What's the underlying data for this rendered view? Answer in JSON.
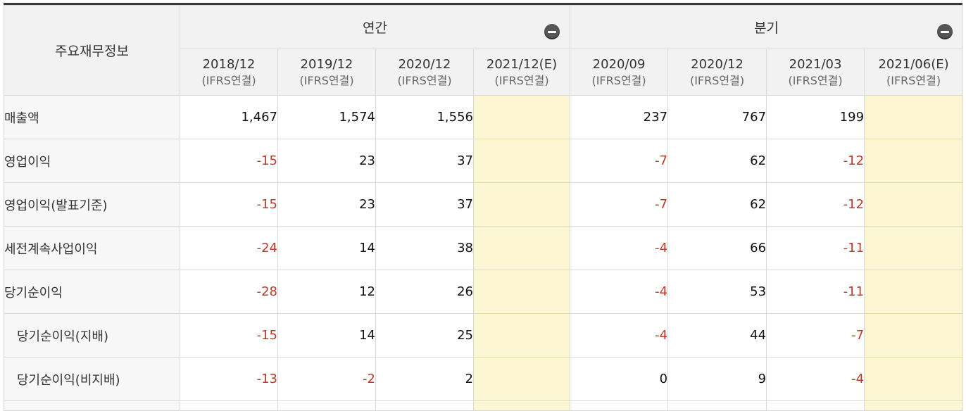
{
  "table": {
    "corner_label": "주요재무정보",
    "groups": {
      "annual": "연간",
      "quarterly": "분기"
    },
    "sub_label": "(IFRS연결)",
    "periods": [
      "2018/12",
      "2019/12",
      "2020/12",
      "2021/12(E)",
      "2020/09",
      "2020/12",
      "2021/03",
      "2021/06(E)"
    ],
    "rows": [
      {
        "label": "매출액",
        "values": [
          "1,467",
          "1,574",
          "1,556",
          "",
          "237",
          "767",
          "199",
          ""
        ]
      },
      {
        "label": "영업이익",
        "values": [
          "-15",
          "23",
          "37",
          "",
          "-7",
          "62",
          "-12",
          ""
        ]
      },
      {
        "label": "영업이익(발표기준)",
        "values": [
          "-15",
          "23",
          "37",
          "",
          "-7",
          "62",
          "-12",
          ""
        ]
      },
      {
        "label": "세전계속사업이익",
        "values": [
          "-24",
          "14",
          "38",
          "",
          "-4",
          "66",
          "-11",
          ""
        ]
      },
      {
        "label": "당기순이익",
        "values": [
          "-28",
          "12",
          "26",
          "",
          "-4",
          "53",
          "-11",
          ""
        ]
      },
      {
        "label": "당기순이익(지배)",
        "values": [
          "-15",
          "14",
          "25",
          "",
          "-4",
          "44",
          "-7",
          ""
        ]
      },
      {
        "label": "당기순이익(비지배)",
        "values": [
          "-13",
          "-2",
          "2",
          "",
          "0",
          "9",
          "-4",
          ""
        ]
      }
    ]
  },
  "colors": {
    "negative": "#c0392b",
    "estimate_bg": "#fdf6d3",
    "header_bg": "#f2f2f2"
  }
}
